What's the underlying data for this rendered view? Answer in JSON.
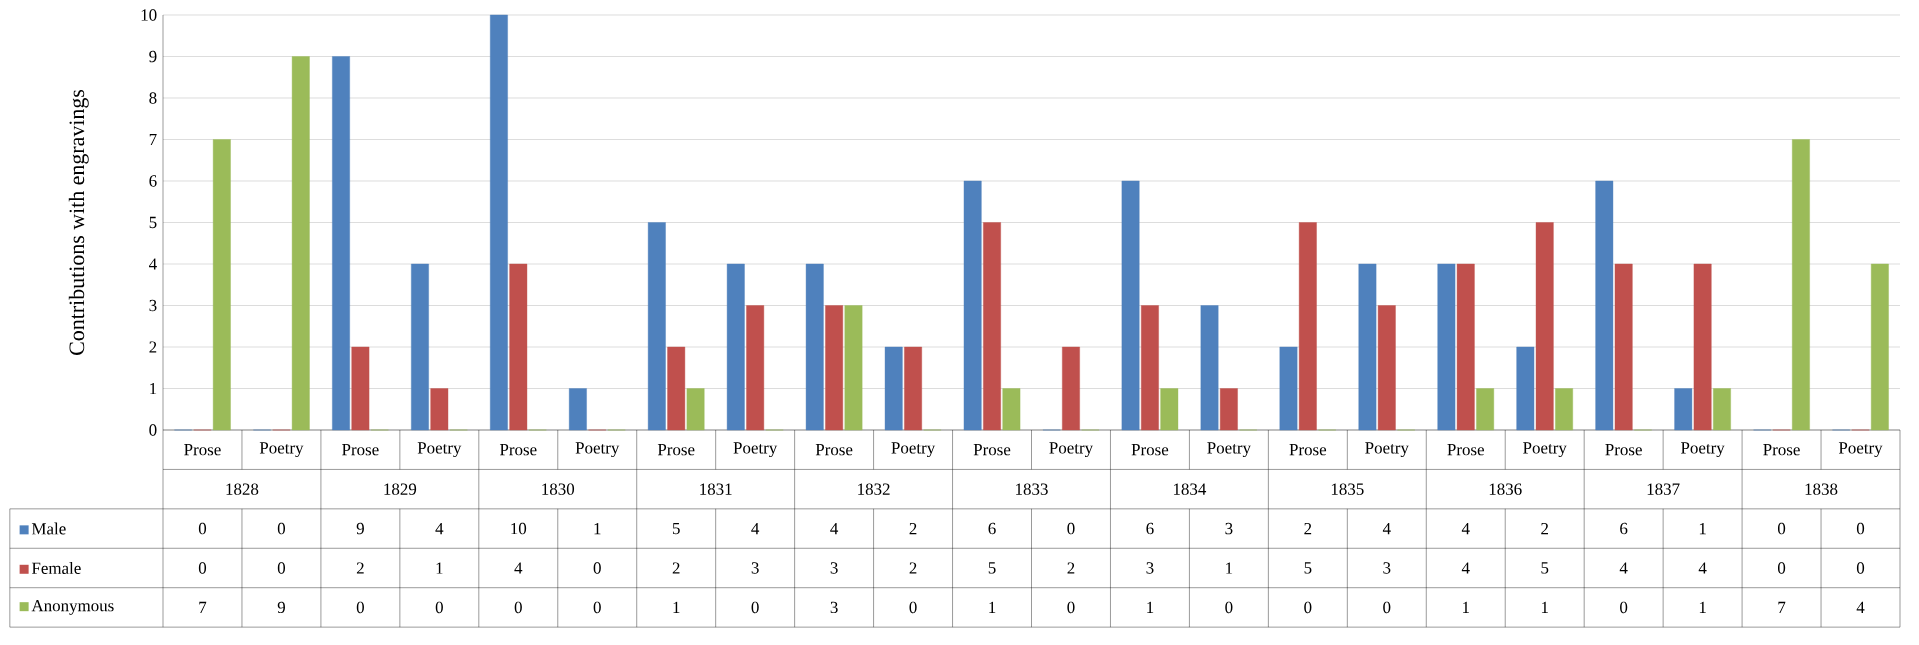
{
  "chart_data": {
    "type": "bar",
    "ylabel": "Contributions with engravings",
    "categories": [
      "Prose",
      "Poetry",
      "Prose",
      "Poetry",
      "Prose",
      "Poetry",
      "Prose",
      "Poetry",
      "Prose",
      "Poetry",
      "Prose",
      "Poetry",
      "Prose",
      "Poetry",
      "Prose",
      "Poetry",
      "Prose",
      "Poetry",
      "Prose",
      "Poetry",
      "Prose",
      "Poetry"
    ],
    "annotations": [
      "1828",
      "1829",
      "1830",
      "1831",
      "1832",
      "1833",
      "1834",
      "1835",
      "1836",
      "1837",
      "1838"
    ],
    "series": [
      {
        "name": "Male",
        "color": "#4f81bd",
        "values": [
          0,
          0,
          9,
          4,
          10,
          1,
          5,
          4,
          4,
          2,
          6,
          0,
          6,
          3,
          2,
          4,
          4,
          2,
          6,
          1,
          0,
          0
        ]
      },
      {
        "name": "Female",
        "color": "#c0504d",
        "values": [
          0,
          0,
          2,
          1,
          4,
          0,
          2,
          3,
          3,
          2,
          5,
          2,
          3,
          1,
          5,
          3,
          4,
          5,
          4,
          4,
          0,
          0
        ]
      },
      {
        "name": "Anonymous",
        "color": "#9bbb59",
        "values": [
          7,
          9,
          0,
          0,
          0,
          0,
          1,
          0,
          3,
          0,
          1,
          0,
          1,
          0,
          0,
          0,
          1,
          1,
          0,
          1,
          7,
          4
        ]
      }
    ],
    "ylim": [
      0,
      10
    ],
    "yticks": [
      0,
      1,
      2,
      3,
      4,
      5,
      6,
      7,
      8,
      9,
      10
    ],
    "grid": "y",
    "data_labels": true,
    "legend": "bottom left"
  }
}
